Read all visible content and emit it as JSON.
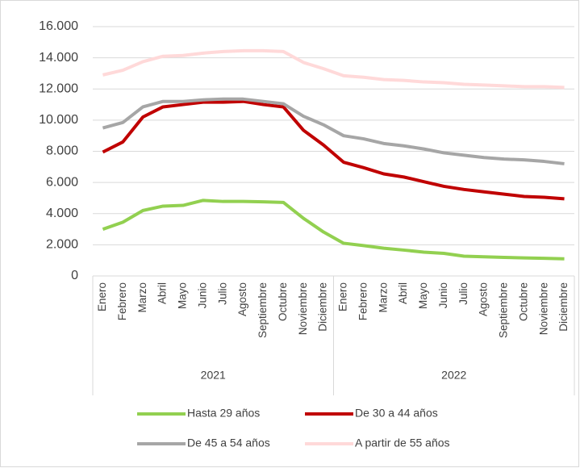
{
  "chart_data": {
    "type": "line",
    "categories": [
      "Enero",
      "Febrero",
      "Marzo",
      "Abril",
      "Mayo",
      "Junio",
      "Julio",
      "Agosto",
      "Septiembre",
      "Octubre",
      "Noviembre",
      "Diciembre",
      "Enero",
      "Febrero",
      "Marzo",
      "Abril",
      "Mayo",
      "Junio",
      "Julio",
      "Agosto",
      "Septiembre",
      "Octubre",
      "Noviembre",
      "Diciembre"
    ],
    "category_groups": [
      "2021",
      "2022"
    ],
    "series": [
      {
        "name": "Hasta 29 años",
        "color": "#92d050",
        "values": [
          3000,
          3450,
          4200,
          4480,
          4530,
          4850,
          4780,
          4780,
          4760,
          4720,
          3700,
          2820,
          2100,
          1950,
          1780,
          1660,
          1530,
          1450,
          1270,
          1230,
          1190,
          1160,
          1130,
          1100
        ]
      },
      {
        "name": "De 30 a 44 años",
        "color": "#c00000",
        "values": [
          7950,
          8600,
          10200,
          10850,
          11000,
          11150,
          11150,
          11200,
          11000,
          10850,
          9350,
          8400,
          7300,
          6950,
          6550,
          6350,
          6050,
          5750,
          5550,
          5400,
          5250,
          5100,
          5050,
          4950
        ]
      },
      {
        "name": "De 45 a 54 años",
        "color": "#a6a6a6",
        "values": [
          9500,
          9850,
          10850,
          11200,
          11200,
          11300,
          11350,
          11350,
          11200,
          11050,
          10250,
          9700,
          9000,
          8800,
          8500,
          8350,
          8150,
          7900,
          7750,
          7600,
          7500,
          7450,
          7350,
          7200
        ]
      },
      {
        "name": "A partir de 55 años",
        "color": "#ffd9d9",
        "values": [
          12900,
          13200,
          13750,
          14100,
          14150,
          14300,
          14400,
          14450,
          14450,
          14400,
          13700,
          13300,
          12850,
          12750,
          12600,
          12550,
          12450,
          12400,
          12300,
          12250,
          12200,
          12150,
          12150,
          12100
        ]
      }
    ],
    "ylim": [
      0,
      16000
    ],
    "yticks": [
      0,
      {
        "value": 2000,
        "label": "2.000"
      },
      {
        "value": 4000,
        "label": "4.000"
      },
      {
        "value": 6000,
        "label": "6.000"
      },
      {
        "value": 8000,
        "label": "8.000"
      },
      {
        "value": 10000,
        "label": "10.000"
      },
      {
        "value": 12000,
        "label": "12.000"
      },
      {
        "value": 14000,
        "label": "14.000"
      },
      {
        "value": 16000,
        "label": "16.000"
      }
    ],
    "grid": true
  }
}
